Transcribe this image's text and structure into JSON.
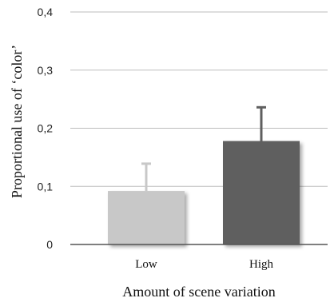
{
  "chart_data": {
    "type": "bar",
    "categories": [
      "Low",
      "High"
    ],
    "values": [
      0.092,
      0.178
    ],
    "error": [
      0.047,
      0.058
    ],
    "ylim": [
      0,
      0.4
    ],
    "yticks": [
      0,
      0.1,
      0.2,
      0.3,
      0.4
    ],
    "ytick_labels": [
      "0",
      "0,1",
      "0,2",
      "0,3",
      "0,4"
    ],
    "xlabel": "Amount of scene variation",
    "ylabel": "Proportional use of ‘color’",
    "grid": true,
    "colors": {
      "Low": "#c8c8c8",
      "High": "#5f5f5f",
      "Low_error": "#c8c8c8",
      "High_error": "#5f5f5f"
    }
  }
}
